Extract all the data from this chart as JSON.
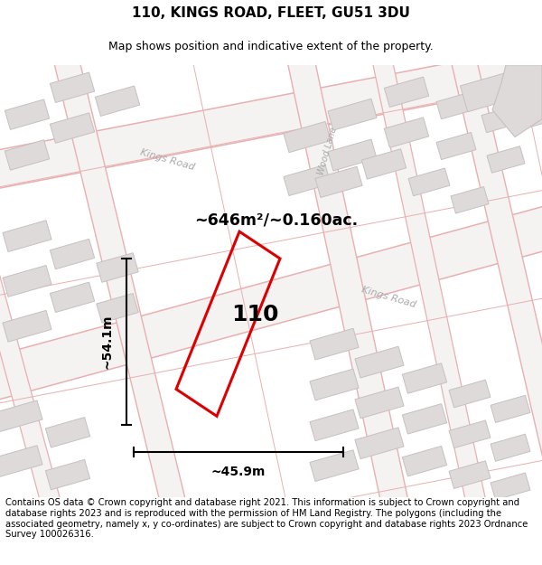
{
  "title": "110, KINGS ROAD, FLEET, GU51 3DU",
  "subtitle": "Map shows position and indicative extent of the property.",
  "footer": "Contains OS data © Crown copyright and database right 2021. This information is subject to Crown copyright and database rights 2023 and is reproduced with the permission of HM Land Registry. The polygons (including the associated geometry, namely x, y co-ordinates) are subject to Crown copyright and database rights 2023 Ordnance Survey 100026316.",
  "area_label": "~646m²/~0.160ac.",
  "number_label": "110",
  "dim_vertical": "~54.1m",
  "dim_horizontal": "~45.9m",
  "map_bg": "#f5f2f2",
  "road_line_color": "#e8b0b0",
  "building_fill": "#dedada",
  "building_edge": "#c8c0c0",
  "property_color": "#dd0000",
  "road_label_color": "#aaaaaa",
  "title_fontsize": 11,
  "subtitle_fontsize": 9,
  "footer_fontsize": 7.2
}
